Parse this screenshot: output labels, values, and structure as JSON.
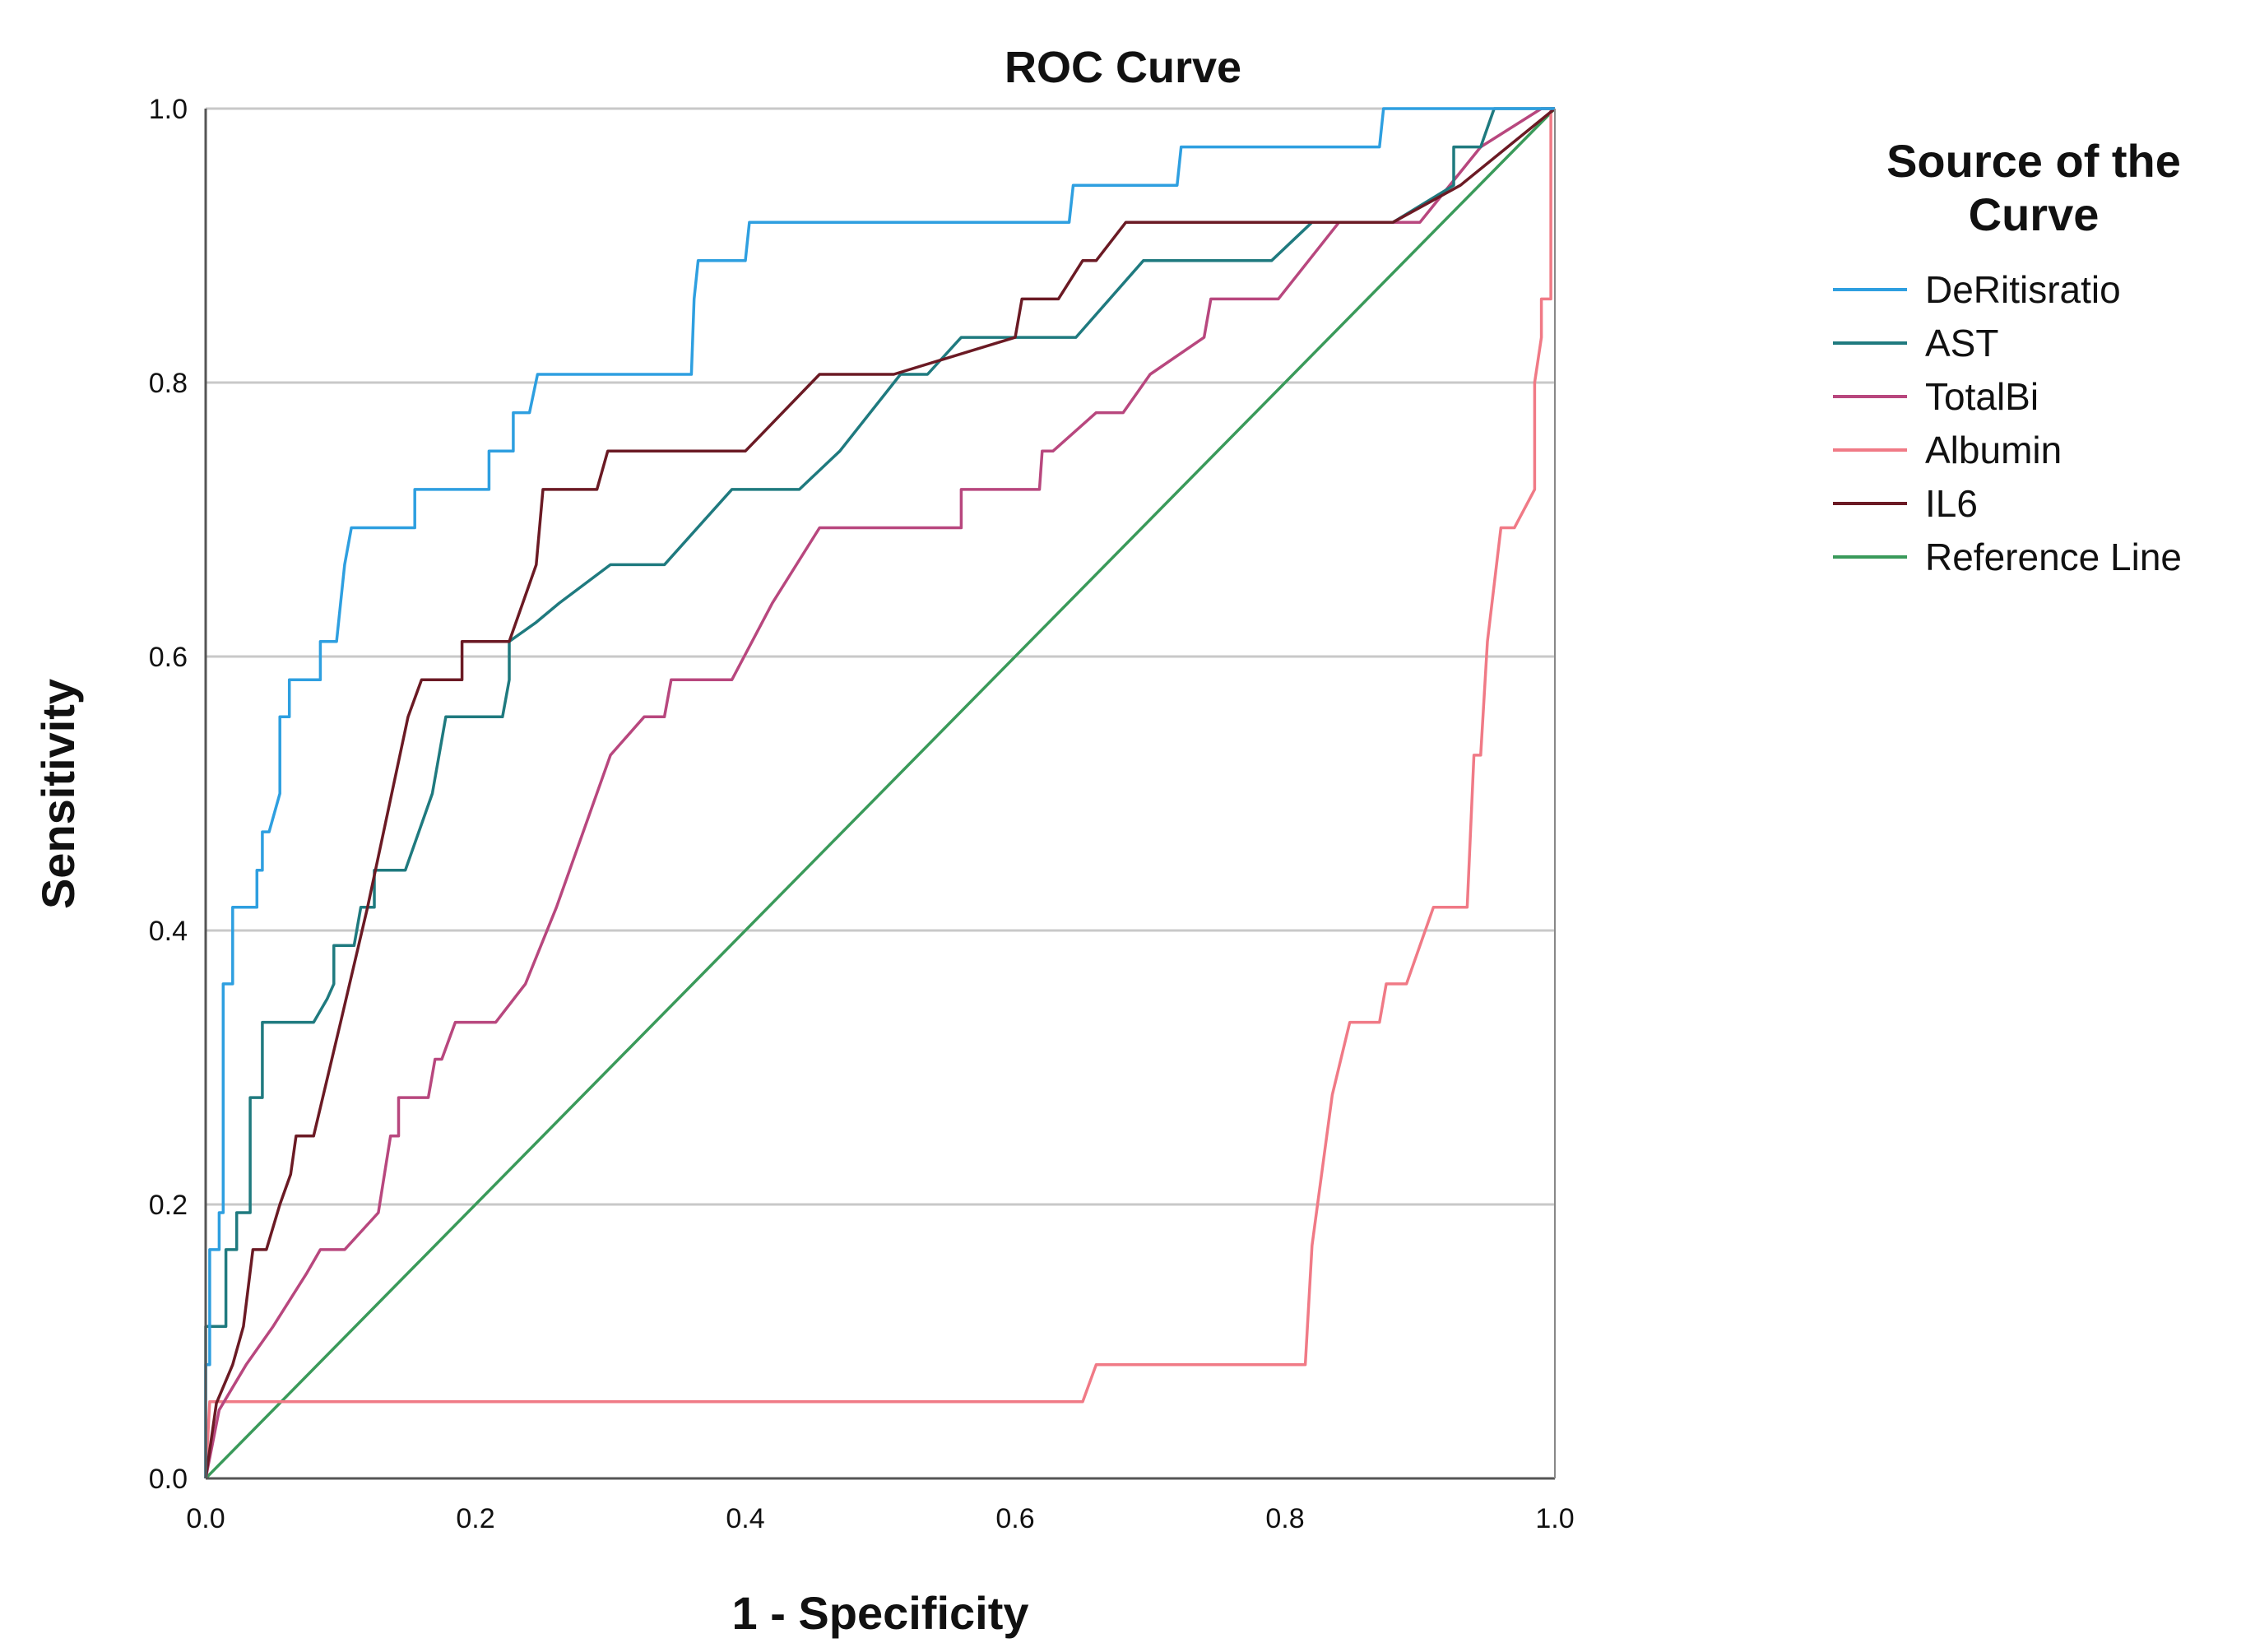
{
  "chart_data": {
    "type": "line",
    "title": "ROC Curve",
    "xlabel": "1 - Specificity",
    "ylabel": "Sensitivity",
    "xlim": [
      0,
      1
    ],
    "ylim": [
      0,
      1
    ],
    "xticks": [
      "0.0",
      "0.2",
      "0.4",
      "0.6",
      "0.8",
      "1.0"
    ],
    "yticks": [
      "0.0",
      "0.2",
      "0.4",
      "0.6",
      "0.8",
      "1.0"
    ],
    "grid": "horizontal",
    "legend": {
      "title_line1": "Source of the",
      "title_line2": "Curve",
      "placement": "right"
    },
    "series": [
      {
        "name": "DeRitisratio",
        "color": "#2e9fe0",
        "points": [
          [
            0,
            0
          ],
          [
            0,
            0.083
          ],
          [
            0.003,
            0.083
          ],
          [
            0.003,
            0.167
          ],
          [
            0.01,
            0.167
          ],
          [
            0.01,
            0.194
          ],
          [
            0.013,
            0.194
          ],
          [
            0.013,
            0.361
          ],
          [
            0.02,
            0.361
          ],
          [
            0.02,
            0.417
          ],
          [
            0.038,
            0.417
          ],
          [
            0.038,
            0.444
          ],
          [
            0.042,
            0.444
          ],
          [
            0.042,
            0.472
          ],
          [
            0.047,
            0.472
          ],
          [
            0.055,
            0.5
          ],
          [
            0.055,
            0.556
          ],
          [
            0.062,
            0.556
          ],
          [
            0.062,
            0.583
          ],
          [
            0.085,
            0.583
          ],
          [
            0.085,
            0.611
          ],
          [
            0.097,
            0.611
          ],
          [
            0.1,
            0.639
          ],
          [
            0.103,
            0.667
          ],
          [
            0.108,
            0.694
          ],
          [
            0.155,
            0.694
          ],
          [
            0.155,
            0.722
          ],
          [
            0.21,
            0.722
          ],
          [
            0.21,
            0.75
          ],
          [
            0.228,
            0.75
          ],
          [
            0.228,
            0.778
          ],
          [
            0.24,
            0.778
          ],
          [
            0.246,
            0.806
          ],
          [
            0.36,
            0.806
          ],
          [
            0.362,
            0.861
          ],
          [
            0.365,
            0.889
          ],
          [
            0.4,
            0.889
          ],
          [
            0.403,
            0.917
          ],
          [
            0.64,
            0.917
          ],
          [
            0.643,
            0.944
          ],
          [
            0.72,
            0.944
          ],
          [
            0.723,
            0.972
          ],
          [
            0.87,
            0.972
          ],
          [
            0.873,
            1
          ],
          [
            1,
            1
          ]
        ]
      },
      {
        "name": "AST",
        "color": "#1f7a7f",
        "points": [
          [
            0,
            0
          ],
          [
            0,
            0.111
          ],
          [
            0.015,
            0.111
          ],
          [
            0.015,
            0.167
          ],
          [
            0.023,
            0.167
          ],
          [
            0.023,
            0.194
          ],
          [
            0.033,
            0.194
          ],
          [
            0.033,
            0.278
          ],
          [
            0.042,
            0.278
          ],
          [
            0.042,
            0.333
          ],
          [
            0.08,
            0.333
          ],
          [
            0.09,
            0.35
          ],
          [
            0.095,
            0.361
          ],
          [
            0.095,
            0.389
          ],
          [
            0.11,
            0.389
          ],
          [
            0.115,
            0.417
          ],
          [
            0.125,
            0.417
          ],
          [
            0.125,
            0.444
          ],
          [
            0.148,
            0.444
          ],
          [
            0.168,
            0.5
          ],
          [
            0.178,
            0.556
          ],
          [
            0.22,
            0.556
          ],
          [
            0.225,
            0.583
          ],
          [
            0.225,
            0.611
          ],
          [
            0.245,
            0.625
          ],
          [
            0.262,
            0.639
          ],
          [
            0.3,
            0.667
          ],
          [
            0.34,
            0.667
          ],
          [
            0.39,
            0.722
          ],
          [
            0.44,
            0.722
          ],
          [
            0.47,
            0.75
          ],
          [
            0.515,
            0.806
          ],
          [
            0.535,
            0.806
          ],
          [
            0.56,
            0.833
          ],
          [
            0.645,
            0.833
          ],
          [
            0.695,
            0.889
          ],
          [
            0.79,
            0.889
          ],
          [
            0.82,
            0.917
          ],
          [
            0.88,
            0.917
          ],
          [
            0.925,
            0.944
          ],
          [
            0.925,
            0.972
          ],
          [
            0.945,
            0.972
          ],
          [
            0.955,
            1
          ],
          [
            1,
            1
          ]
        ]
      },
      {
        "name": "TotalBi",
        "color": "#b8477e",
        "points": [
          [
            0,
            0
          ],
          [
            0.01,
            0.05
          ],
          [
            0.03,
            0.083
          ],
          [
            0.05,
            0.111
          ],
          [
            0.075,
            0.15
          ],
          [
            0.085,
            0.167
          ],
          [
            0.103,
            0.167
          ],
          [
            0.128,
            0.194
          ],
          [
            0.137,
            0.25
          ],
          [
            0.143,
            0.25
          ],
          [
            0.143,
            0.278
          ],
          [
            0.165,
            0.278
          ],
          [
            0.17,
            0.306
          ],
          [
            0.175,
            0.306
          ],
          [
            0.185,
            0.333
          ],
          [
            0.215,
            0.333
          ],
          [
            0.237,
            0.361
          ],
          [
            0.26,
            0.417
          ],
          [
            0.3,
            0.528
          ],
          [
            0.325,
            0.556
          ],
          [
            0.34,
            0.556
          ],
          [
            0.345,
            0.583
          ],
          [
            0.39,
            0.583
          ],
          [
            0.42,
            0.639
          ],
          [
            0.455,
            0.694
          ],
          [
            0.56,
            0.694
          ],
          [
            0.56,
            0.722
          ],
          [
            0.618,
            0.722
          ],
          [
            0.62,
            0.75
          ],
          [
            0.628,
            0.75
          ],
          [
            0.66,
            0.778
          ],
          [
            0.68,
            0.778
          ],
          [
            0.7,
            0.806
          ],
          [
            0.74,
            0.833
          ],
          [
            0.745,
            0.861
          ],
          [
            0.795,
            0.861
          ],
          [
            0.84,
            0.917
          ],
          [
            0.9,
            0.917
          ],
          [
            0.945,
            0.972
          ],
          [
            0.99,
            1
          ],
          [
            1,
            1
          ]
        ]
      },
      {
        "name": "Albumin",
        "color": "#f07a86",
        "points": [
          [
            0,
            0
          ],
          [
            0.003,
            0.056
          ],
          [
            0.65,
            0.056
          ],
          [
            0.66,
            0.083
          ],
          [
            0.815,
            0.083
          ],
          [
            0.82,
            0.17
          ],
          [
            0.835,
            0.28
          ],
          [
            0.848,
            0.333
          ],
          [
            0.87,
            0.333
          ],
          [
            0.875,
            0.361
          ],
          [
            0.89,
            0.361
          ],
          [
            0.9,
            0.389
          ],
          [
            0.91,
            0.417
          ],
          [
            0.935,
            0.417
          ],
          [
            0.94,
            0.528
          ],
          [
            0.945,
            0.528
          ],
          [
            0.95,
            0.611
          ],
          [
            0.96,
            0.694
          ],
          [
            0.97,
            0.694
          ],
          [
            0.985,
            0.722
          ],
          [
            0.985,
            0.8
          ],
          [
            0.99,
            0.833
          ],
          [
            0.99,
            0.861
          ],
          [
            0.997,
            0.861
          ],
          [
            0.997,
            1
          ],
          [
            1,
            1
          ]
        ]
      },
      {
        "name": "IL6",
        "color": "#6b1a24",
        "points": [
          [
            0,
            0
          ],
          [
            0.008,
            0.055
          ],
          [
            0.02,
            0.083
          ],
          [
            0.028,
            0.111
          ],
          [
            0.035,
            0.167
          ],
          [
            0.045,
            0.167
          ],
          [
            0.055,
            0.2
          ],
          [
            0.063,
            0.222
          ],
          [
            0.067,
            0.25
          ],
          [
            0.08,
            0.25
          ],
          [
            0.1,
            0.333
          ],
          [
            0.12,
            0.417
          ],
          [
            0.15,
            0.556
          ],
          [
            0.16,
            0.583
          ],
          [
            0.19,
            0.583
          ],
          [
            0.19,
            0.611
          ],
          [
            0.225,
            0.611
          ],
          [
            0.245,
            0.667
          ],
          [
            0.25,
            0.722
          ],
          [
            0.29,
            0.722
          ],
          [
            0.298,
            0.75
          ],
          [
            0.4,
            0.75
          ],
          [
            0.455,
            0.806
          ],
          [
            0.51,
            0.806
          ],
          [
            0.6,
            0.833
          ],
          [
            0.605,
            0.861
          ],
          [
            0.632,
            0.861
          ],
          [
            0.65,
            0.889
          ],
          [
            0.66,
            0.889
          ],
          [
            0.682,
            0.917
          ],
          [
            0.88,
            0.917
          ],
          [
            0.93,
            0.944
          ],
          [
            1,
            1
          ]
        ]
      },
      {
        "name": "Reference Line",
        "color": "#3a9a5a",
        "points": [
          [
            0,
            0
          ],
          [
            1,
            1
          ]
        ]
      }
    ]
  }
}
